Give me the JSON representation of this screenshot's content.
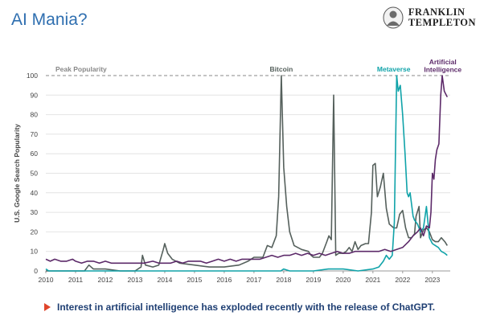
{
  "title": "AI Mania?",
  "logo": {
    "line1": "FRANKLIN",
    "line2": "TEMPLETON"
  },
  "footer_note": "Interest in artificial intelligence has exploded recently with the release of ChatGPT.",
  "colors": {
    "bitcoin": "#55605c",
    "metaverse": "#10a3a9",
    "ai": "#5c2a69",
    "title": "#2f6fb0",
    "footer": "#1f3f73",
    "bullet": "#e0452b"
  },
  "chart_data": {
    "type": "line",
    "ylabel": "U.S. Google Search Popularity",
    "xlabel": "",
    "xlim": [
      2010,
      2023.6
    ],
    "ylim": [
      0,
      100
    ],
    "x_ticks": [
      "2010",
      "2011",
      "2012",
      "2013",
      "2014",
      "2015",
      "2016",
      "2017",
      "2018",
      "2019",
      "2020",
      "2021",
      "2022",
      "2023"
    ],
    "y_ticks": [
      "0",
      "10",
      "20",
      "30",
      "40",
      "50",
      "60",
      "70",
      "80",
      "90",
      "100"
    ],
    "reference_line": {
      "y": 100,
      "label": "Peak Popularity",
      "style": "dashed"
    },
    "series": [
      {
        "name": "Bitcoin",
        "color": "#55605c",
        "points": [
          [
            2010,
            0
          ],
          [
            2010.5,
            0
          ],
          [
            2011,
            0
          ],
          [
            2011.3,
            0
          ],
          [
            2011.45,
            3
          ],
          [
            2011.6,
            1
          ],
          [
            2012,
            1
          ],
          [
            2012.5,
            0
          ],
          [
            2013,
            0
          ],
          [
            2013.2,
            2
          ],
          [
            2013.25,
            8
          ],
          [
            2013.35,
            3
          ],
          [
            2013.6,
            2
          ],
          [
            2013.8,
            3
          ],
          [
            2013.95,
            11
          ],
          [
            2014.0,
            14
          ],
          [
            2014.1,
            9
          ],
          [
            2014.25,
            6
          ],
          [
            2014.5,
            4
          ],
          [
            2015,
            3
          ],
          [
            2015.5,
            2
          ],
          [
            2016,
            2
          ],
          [
            2016.5,
            3
          ],
          [
            2016.8,
            5
          ],
          [
            2017.0,
            7
          ],
          [
            2017.3,
            7
          ],
          [
            2017.45,
            13
          ],
          [
            2017.6,
            12
          ],
          [
            2017.75,
            18
          ],
          [
            2017.83,
            38
          ],
          [
            2017.92,
            100
          ],
          [
            2018.0,
            53
          ],
          [
            2018.1,
            33
          ],
          [
            2018.2,
            20
          ],
          [
            2018.35,
            13
          ],
          [
            2018.6,
            11
          ],
          [
            2018.83,
            10
          ],
          [
            2018.92,
            8
          ],
          [
            2019.0,
            7
          ],
          [
            2019.2,
            7
          ],
          [
            2019.3,
            9
          ],
          [
            2019.45,
            15
          ],
          [
            2019.52,
            18
          ],
          [
            2019.6,
            16
          ],
          [
            2019.68,
            90
          ],
          [
            2019.75,
            8
          ],
          [
            2019.85,
            9
          ],
          [
            2020.0,
            9
          ],
          [
            2020.1,
            10
          ],
          [
            2020.2,
            12
          ],
          [
            2020.3,
            10
          ],
          [
            2020.4,
            15
          ],
          [
            2020.5,
            11
          ],
          [
            2020.6,
            13
          ],
          [
            2020.75,
            14
          ],
          [
            2020.85,
            14
          ],
          [
            2020.95,
            30
          ],
          [
            2021.0,
            54
          ],
          [
            2021.08,
            55
          ],
          [
            2021.15,
            38
          ],
          [
            2021.25,
            43
          ],
          [
            2021.35,
            50
          ],
          [
            2021.45,
            32
          ],
          [
            2021.55,
            24
          ],
          [
            2021.7,
            22
          ],
          [
            2021.8,
            22
          ],
          [
            2021.9,
            29
          ],
          [
            2022.0,
            31
          ],
          [
            2022.1,
            22
          ],
          [
            2022.2,
            17
          ],
          [
            2022.3,
            17
          ],
          [
            2022.4,
            19
          ],
          [
            2022.45,
            28
          ],
          [
            2022.55,
            33
          ],
          [
            2022.6,
            17
          ],
          [
            2022.7,
            21
          ],
          [
            2022.8,
            22
          ],
          [
            2022.9,
            20
          ],
          [
            2023.0,
            16
          ],
          [
            2023.1,
            15
          ],
          [
            2023.2,
            15
          ],
          [
            2023.3,
            17
          ],
          [
            2023.42,
            15
          ],
          [
            2023.5,
            13
          ]
        ]
      },
      {
        "name": "Metaverse",
        "color": "#10a3a9",
        "points": [
          [
            2010,
            1
          ],
          [
            2010.1,
            0
          ],
          [
            2011,
            0
          ],
          [
            2012,
            0
          ],
          [
            2013,
            0
          ],
          [
            2014,
            0
          ],
          [
            2015,
            0
          ],
          [
            2016,
            0
          ],
          [
            2017,
            0
          ],
          [
            2017.9,
            0
          ],
          [
            2018.0,
            1
          ],
          [
            2018.2,
            0
          ],
          [
            2019,
            0
          ],
          [
            2019.5,
            1
          ],
          [
            2020,
            1
          ],
          [
            2020.5,
            0
          ],
          [
            2021,
            1
          ],
          [
            2021.2,
            2
          ],
          [
            2021.35,
            5
          ],
          [
            2021.45,
            8
          ],
          [
            2021.55,
            6
          ],
          [
            2021.65,
            8
          ],
          [
            2021.72,
            25
          ],
          [
            2021.8,
            100
          ],
          [
            2021.85,
            92
          ],
          [
            2021.92,
            95
          ],
          [
            2022.0,
            80
          ],
          [
            2022.08,
            60
          ],
          [
            2022.15,
            40
          ],
          [
            2022.2,
            38
          ],
          [
            2022.25,
            40
          ],
          [
            2022.35,
            28
          ],
          [
            2022.4,
            26
          ],
          [
            2022.5,
            24
          ],
          [
            2022.6,
            20
          ],
          [
            2022.7,
            22
          ],
          [
            2022.8,
            33
          ],
          [
            2022.9,
            17
          ],
          [
            2023.0,
            14
          ],
          [
            2023.1,
            13
          ],
          [
            2023.2,
            12
          ],
          [
            2023.3,
            10
          ],
          [
            2023.42,
            9
          ],
          [
            2023.5,
            8
          ]
        ]
      },
      {
        "name": "Artificial Intelligence",
        "color": "#5c2a69",
        "points": [
          [
            2010,
            6
          ],
          [
            2010.15,
            5
          ],
          [
            2010.3,
            6
          ],
          [
            2010.5,
            5
          ],
          [
            2010.7,
            5
          ],
          [
            2010.9,
            6
          ],
          [
            2011,
            5
          ],
          [
            2011.2,
            4
          ],
          [
            2011.4,
            5
          ],
          [
            2011.6,
            5
          ],
          [
            2011.8,
            4
          ],
          [
            2012,
            5
          ],
          [
            2012.2,
            4
          ],
          [
            2012.5,
            4
          ],
          [
            2012.8,
            4
          ],
          [
            2013,
            4
          ],
          [
            2013.3,
            4
          ],
          [
            2013.6,
            5
          ],
          [
            2013.8,
            4
          ],
          [
            2014,
            4
          ],
          [
            2014.2,
            4
          ],
          [
            2014.4,
            5
          ],
          [
            2014.6,
            4
          ],
          [
            2014.8,
            5
          ],
          [
            2015,
            5
          ],
          [
            2015.2,
            5
          ],
          [
            2015.4,
            4
          ],
          [
            2015.6,
            5
          ],
          [
            2015.8,
            6
          ],
          [
            2016,
            5
          ],
          [
            2016.2,
            6
          ],
          [
            2016.4,
            5
          ],
          [
            2016.6,
            6
          ],
          [
            2016.8,
            6
          ],
          [
            2017,
            6
          ],
          [
            2017.2,
            6
          ],
          [
            2017.4,
            7
          ],
          [
            2017.6,
            8
          ],
          [
            2017.8,
            7
          ],
          [
            2018,
            8
          ],
          [
            2018.2,
            8
          ],
          [
            2018.4,
            9
          ],
          [
            2018.6,
            8
          ],
          [
            2018.8,
            9
          ],
          [
            2019,
            8
          ],
          [
            2019.2,
            9
          ],
          [
            2019.4,
            8
          ],
          [
            2019.6,
            9
          ],
          [
            2019.8,
            10
          ],
          [
            2020,
            9
          ],
          [
            2020.2,
            9
          ],
          [
            2020.4,
            10
          ],
          [
            2020.6,
            10
          ],
          [
            2020.8,
            10
          ],
          [
            2021,
            10
          ],
          [
            2021.2,
            10
          ],
          [
            2021.4,
            11
          ],
          [
            2021.6,
            10
          ],
          [
            2021.8,
            11
          ],
          [
            2022,
            12
          ],
          [
            2022.2,
            15
          ],
          [
            2022.35,
            18
          ],
          [
            2022.5,
            20
          ],
          [
            2022.6,
            22
          ],
          [
            2022.7,
            18
          ],
          [
            2022.8,
            23
          ],
          [
            2022.9,
            22
          ],
          [
            2022.95,
            30
          ],
          [
            2023.0,
            50
          ],
          [
            2023.05,
            47
          ],
          [
            2023.1,
            57
          ],
          [
            2023.15,
            62
          ],
          [
            2023.22,
            65
          ],
          [
            2023.28,
            90
          ],
          [
            2023.33,
            100
          ],
          [
            2023.4,
            92
          ],
          [
            2023.5,
            89
          ]
        ]
      }
    ]
  }
}
